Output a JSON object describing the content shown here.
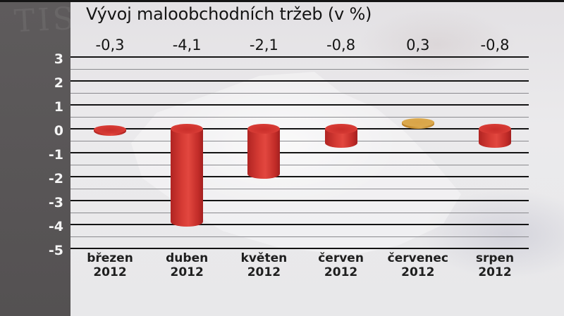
{
  "chart_data": {
    "type": "bar",
    "title": "Vývoj maloobchodních tržeb (v %)",
    "categories": [
      "březen 2012",
      "duben 2012",
      "květen 2012",
      "červen 2012",
      "červenec 2012",
      "srpen 2012"
    ],
    "category_lines": [
      [
        "březen",
        "2012"
      ],
      [
        "duben",
        "2012"
      ],
      [
        "květen",
        "2012"
      ],
      [
        "červen",
        "2012"
      ],
      [
        "červenec",
        "2012"
      ],
      [
        "srpen",
        "2012"
      ]
    ],
    "values": [
      -0.3,
      -4.1,
      -2.1,
      -0.8,
      0.3,
      -0.8
    ],
    "value_labels": [
      "-0,3",
      "-4,1",
      "-2,1",
      "-0,8",
      "0,3",
      "-0,8"
    ],
    "xlabel": "",
    "ylabel": "",
    "ylim": [
      -5,
      3
    ],
    "yticks": [
      3,
      2,
      1,
      0,
      -1,
      -2,
      -3,
      -4,
      -5
    ],
    "ytick_labels": [
      "3",
      "2",
      "1",
      "0",
      "-1",
      "-2",
      "-3",
      "-4",
      "-5"
    ],
    "grid": true,
    "legend": null,
    "colors": {
      "negative": "#d63a34",
      "positive": "#d9a447"
    }
  }
}
